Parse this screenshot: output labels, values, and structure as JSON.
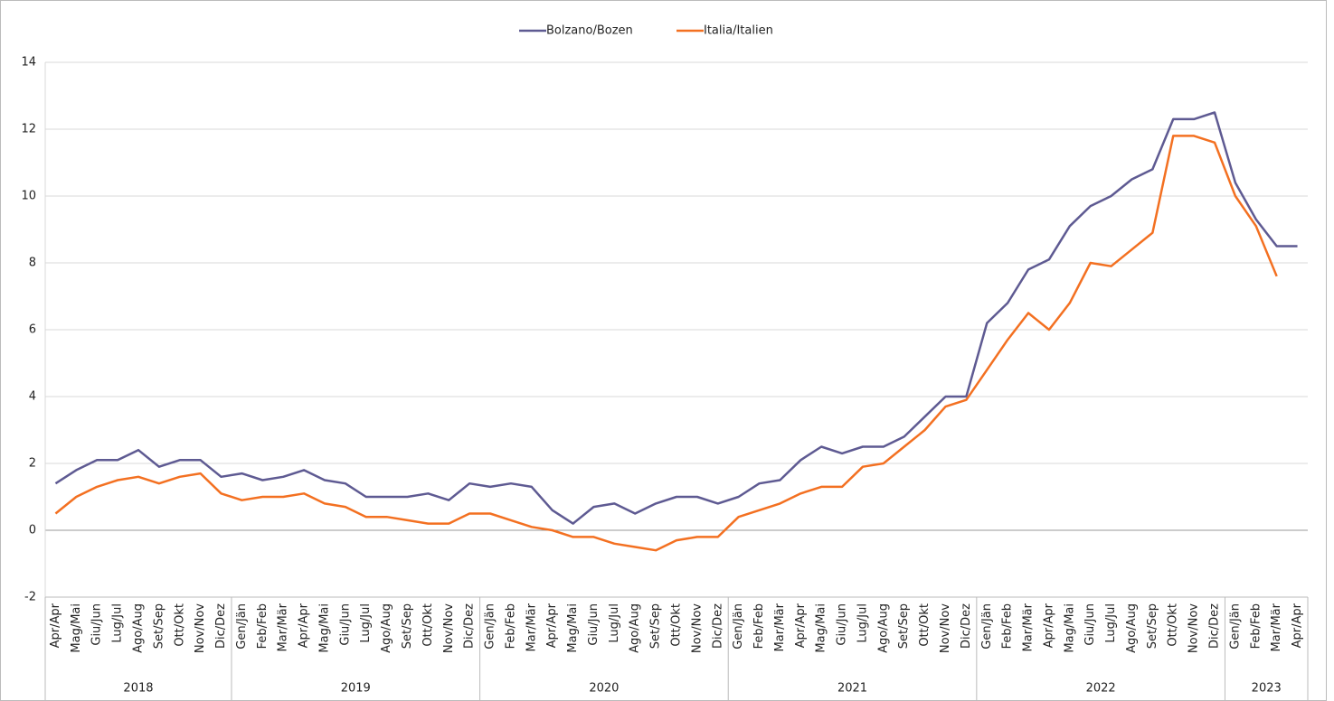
{
  "chart_data": {
    "type": "line",
    "category_groups": [
      {
        "label": "2018",
        "categories": [
          "Apr/Apr",
          "Mag/Mai",
          "Giu/Jun",
          "Lug/Jul",
          "Ago/Aug",
          "Set/Sep",
          "Ott/Okt",
          "Nov/Nov",
          "Dic/Dez"
        ]
      },
      {
        "label": "2019",
        "categories": [
          "Gen/Jän",
          "Feb/Feb",
          "Mar/Mär",
          "Apr/Apr",
          "Mag/Mai",
          "Giu/Jun",
          "Lug/Jul",
          "Ago/Aug",
          "Set/Sep",
          "Ott/Okt",
          "Nov/Nov",
          "Dic/Dez"
        ]
      },
      {
        "label": "2020",
        "categories": [
          "Gen/Jän",
          "Feb/Feb",
          "Mar/Mär",
          "Apr/Apr",
          "Mag/Mai",
          "Giu/Jun",
          "Lug/Jul",
          "Ago/Aug",
          "Set/Sep",
          "Ott/Okt",
          "Nov/Nov",
          "Dic/Dez"
        ]
      },
      {
        "label": "2021",
        "categories": [
          "Gen/Jän",
          "Feb/Feb",
          "Mar/Mär",
          "Apr/Apr",
          "Mag/Mai",
          "Giu/Jun",
          "Lug/Jul",
          "Ago/Aug",
          "Set/Sep",
          "Ott/Okt",
          "Nov/Nov",
          "Dic/Dez"
        ]
      },
      {
        "label": "2022",
        "categories": [
          "Gen/Jän",
          "Feb/Feb",
          "Mar/Mär",
          "Apr/Apr",
          "Mag/Mai",
          "Giu/Jun",
          "Lug/Jul",
          "Ago/Aug",
          "Set/Sep",
          "Ott/Okt",
          "Nov/Nov",
          "Dic/Dez"
        ]
      },
      {
        "label": "2023",
        "categories": [
          "Gen/Jän",
          "Feb/Feb",
          "Mar/Mär",
          "Apr/Apr"
        ]
      }
    ],
    "series": [
      {
        "name": "Bolzano/Bozen",
        "color": "#5e5a92",
        "values": [
          1.4,
          1.8,
          2.1,
          2.1,
          2.4,
          1.9,
          2.1,
          2.1,
          1.6,
          1.7,
          1.5,
          1.6,
          1.8,
          1.5,
          1.4,
          1.0,
          1.0,
          1.0,
          1.1,
          0.9,
          1.4,
          1.3,
          1.4,
          1.3,
          0.6,
          0.2,
          0.7,
          0.8,
          0.5,
          0.8,
          1.0,
          1.0,
          0.8,
          1.0,
          1.4,
          1.5,
          2.1,
          2.5,
          2.3,
          2.5,
          2.5,
          2.8,
          3.4,
          4.0,
          4.0,
          6.2,
          6.8,
          7.8,
          8.1,
          9.1,
          9.7,
          10.0,
          10.5,
          10.8,
          12.3,
          12.3,
          12.5,
          10.4,
          9.3,
          8.5,
          8.5
        ]
      },
      {
        "name": "Italia/Italien",
        "color": "#f37021",
        "values": [
          0.5,
          1.0,
          1.3,
          1.5,
          1.6,
          1.4,
          1.6,
          1.7,
          1.1,
          0.9,
          1.0,
          1.0,
          1.1,
          0.8,
          0.7,
          0.4,
          0.4,
          0.3,
          0.2,
          0.2,
          0.5,
          0.5,
          0.3,
          0.1,
          0.0,
          -0.2,
          -0.2,
          -0.4,
          -0.5,
          -0.6,
          -0.3,
          -0.2,
          -0.2,
          0.4,
          0.6,
          0.8,
          1.1,
          1.3,
          1.3,
          1.9,
          2.0,
          2.5,
          3.0,
          3.7,
          3.9,
          4.8,
          5.7,
          6.5,
          6.0,
          6.8,
          8.0,
          7.9,
          8.4,
          8.9,
          11.8,
          11.8,
          11.6,
          10.0,
          9.1,
          7.6,
          null
        ]
      }
    ],
    "ylim": [
      -2,
      14
    ],
    "yticks": [
      -2,
      0,
      2,
      4,
      6,
      8,
      10,
      12,
      14
    ],
    "grid": true,
    "legend": "top"
  }
}
